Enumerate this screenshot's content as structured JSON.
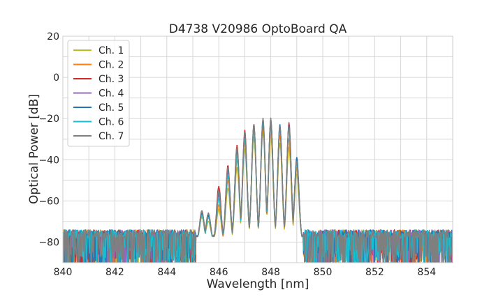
{
  "chart_data": {
    "type": "line",
    "title": "D4738 V20986 OptoBoard QA",
    "xlabel": "Wavelength [nm]",
    "ylabel": "Optical Power [dB]",
    "xlim": [
      840,
      855
    ],
    "ylim": [
      -90,
      20
    ],
    "xticks": [
      "840",
      "842",
      "844",
      "846",
      "848",
      "850",
      "852",
      "854"
    ],
    "yticks": [
      "20",
      "0",
      "−20",
      "−40",
      "−60",
      "−80"
    ],
    "grid": true,
    "legend_position": "top-left",
    "noise_floor_db": -80,
    "series": [
      {
        "name": "Ch. 1",
        "color": "#bcbd22",
        "x": [
          845.35,
          845.6,
          846.0,
          846.35,
          846.7,
          847.0,
          847.35,
          847.7,
          848.0,
          848.35,
          848.7,
          849.0
        ],
        "y": [
          -68,
          -70,
          -64,
          -54,
          -44,
          -35,
          -29,
          -26,
          -28,
          -32,
          -34,
          -47
        ]
      },
      {
        "name": "Ch. 2",
        "color": "#ff7f0e",
        "x": [
          845.35,
          845.6,
          846.0,
          846.35,
          846.7,
          847.0,
          847.35,
          847.7,
          848.0,
          848.35,
          848.7,
          849.0
        ],
        "y": [
          -67,
          -68,
          -62,
          -50,
          -40,
          -31,
          -26,
          -24,
          -25,
          -28,
          -30,
          -44
        ]
      },
      {
        "name": "Ch. 3",
        "color": "#d62728",
        "x": [
          845.35,
          845.6,
          846.0,
          846.35,
          846.7,
          847.0,
          847.35,
          847.7,
          848.0,
          848.35,
          848.7,
          849.0
        ],
        "y": [
          -65,
          -66,
          -53,
          -43,
          -33,
          -26,
          -23,
          -22,
          -22,
          -24,
          -22,
          -40
        ]
      },
      {
        "name": "Ch. 4",
        "color": "#9467bd",
        "x": [
          845.35,
          845.6,
          846.0,
          846.35,
          846.7,
          847.0,
          847.35,
          847.7,
          848.0,
          848.35,
          848.7,
          849.0
        ],
        "y": [
          -66,
          -67,
          -57,
          -46,
          -36,
          -29,
          -24,
          -21,
          -21,
          -25,
          -24,
          -41
        ]
      },
      {
        "name": "Ch. 5",
        "color": "#1f77b4",
        "x": [
          845.35,
          845.6,
          846.0,
          846.35,
          846.7,
          847.0,
          847.35,
          847.7,
          848.0,
          848.35,
          848.7,
          849.0
        ],
        "y": [
          -66,
          -67,
          -56,
          -45,
          -35,
          -28,
          -24,
          -21,
          -21,
          -23,
          -23,
          -39
        ]
      },
      {
        "name": "Ch. 6",
        "color": "#17becf",
        "x": [
          845.35,
          845.6,
          846.0,
          846.35,
          846.7,
          847.0,
          847.35,
          847.7,
          848.0,
          848.35,
          848.7,
          849.0
        ],
        "y": [
          -67,
          -68,
          -59,
          -48,
          -38,
          -30,
          -25,
          -22,
          -21,
          -24,
          -25,
          -42
        ]
      },
      {
        "name": "Ch. 7",
        "color": "#7f7f7f",
        "x": [
          845.35,
          845.6,
          846.0,
          846.35,
          846.7,
          847.0,
          847.35,
          847.7,
          848.0,
          848.35,
          848.7,
          849.0
        ],
        "y": [
          -65,
          -66,
          -55,
          -44,
          -34,
          -27,
          -23,
          -20,
          -20,
          -24,
          -24,
          -41
        ]
      }
    ]
  }
}
